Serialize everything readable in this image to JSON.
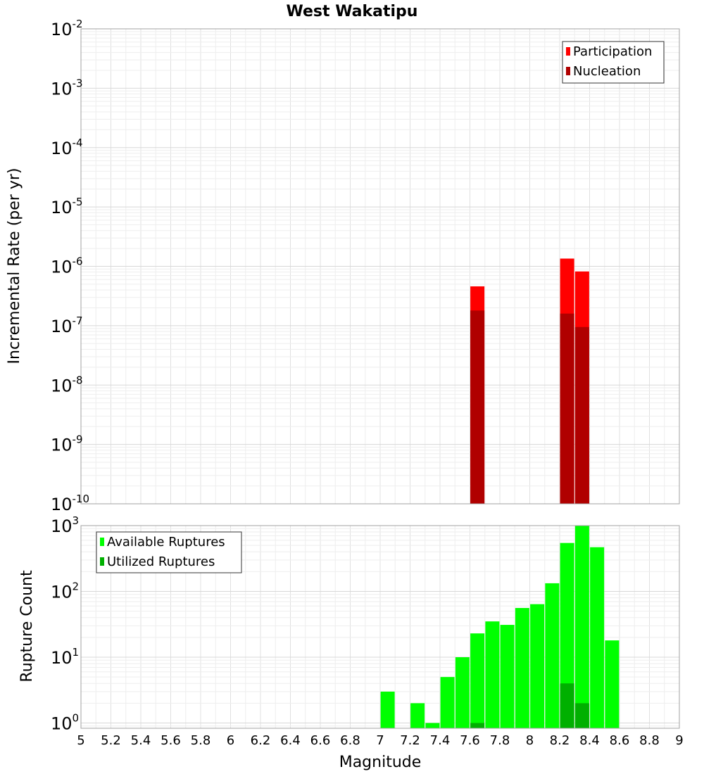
{
  "chart_data": {
    "type": "bar",
    "title": "West Wakatipu",
    "xlabel": "Magnitude",
    "xlim": [
      5,
      9
    ],
    "x_ticks": [
      "5",
      "5.2",
      "5.4",
      "5.6",
      "5.8",
      "6",
      "6.2",
      "6.4",
      "6.6",
      "6.8",
      "7",
      "7.2",
      "7.4",
      "7.6",
      "7.8",
      "8",
      "8.2",
      "8.4",
      "8.6",
      "8.8",
      "9"
    ],
    "panels": [
      {
        "name": "rate",
        "ylabel": "Incremental Rate (per yr)",
        "yscale": "log",
        "ylim_exp": [
          -10,
          -2
        ],
        "y_ticks": [
          {
            "base": "10",
            "exp": "-2"
          },
          {
            "base": "10",
            "exp": "-3"
          },
          {
            "base": "10",
            "exp": "-4"
          },
          {
            "base": "10",
            "exp": "-5"
          },
          {
            "base": "10",
            "exp": "-6"
          },
          {
            "base": "10",
            "exp": "-7"
          },
          {
            "base": "10",
            "exp": "-8"
          },
          {
            "base": "10",
            "exp": "-9"
          },
          {
            "base": "10",
            "exp": "-10"
          }
        ],
        "legend_position": "top-right",
        "series": [
          {
            "name": "Participation",
            "color": "#ff0000",
            "points": [
              [
                7.65,
                4.6e-07
              ],
              [
                8.25,
                1.35e-06
              ],
              [
                8.35,
                8.2e-07
              ]
            ]
          },
          {
            "name": "Nucleation",
            "color": "#b00000",
            "points": [
              [
                7.65,
                1.8e-07
              ],
              [
                8.25,
                1.6e-07
              ],
              [
                8.35,
                9.5e-08
              ]
            ]
          }
        ]
      },
      {
        "name": "count",
        "ylabel": "Rupture Count",
        "yscale": "log",
        "ylim_exp": [
          -0.08,
          3
        ],
        "y_ticks": [
          {
            "base": "10",
            "exp": "3"
          },
          {
            "base": "10",
            "exp": "2"
          },
          {
            "base": "10",
            "exp": "1"
          },
          {
            "base": "10",
            "exp": "0"
          }
        ],
        "legend_position": "top-left",
        "series": [
          {
            "name": "Available Ruptures",
            "color": "#00ff00",
            "points": [
              [
                7.05,
                3
              ],
              [
                7.25,
                2
              ],
              [
                7.35,
                1
              ],
              [
                7.45,
                5
              ],
              [
                7.55,
                10
              ],
              [
                7.65,
                23
              ],
              [
                7.75,
                35
              ],
              [
                7.85,
                31
              ],
              [
                7.95,
                56
              ],
              [
                8.05,
                64
              ],
              [
                8.15,
                133
              ],
              [
                8.25,
                545
              ],
              [
                8.35,
                990
              ],
              [
                8.45,
                470
              ],
              [
                8.55,
                18
              ]
            ]
          },
          {
            "name": "Utilized Ruptures",
            "color": "#00b000",
            "points": [
              [
                7.65,
                1
              ],
              [
                8.25,
                4
              ],
              [
                8.35,
                2
              ]
            ]
          }
        ]
      }
    ]
  }
}
